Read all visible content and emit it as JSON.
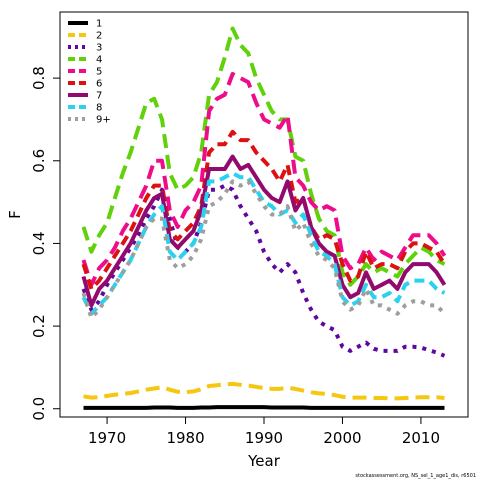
{
  "chart_data": {
    "type": "line",
    "title": "",
    "xlabel": "Year",
    "ylabel": "F",
    "xlim": [
      1964,
      2016
    ],
    "ylim": [
      -0.02,
      0.96
    ],
    "xticks": [
      1970,
      1980,
      1990,
      2000,
      2010
    ],
    "yticks": [
      0.0,
      0.2,
      0.4,
      0.6,
      0.8
    ],
    "xtick_labels": [
      "1970",
      "1980",
      "1990",
      "2000",
      "2010"
    ],
    "ytick_labels": [
      "0.0",
      "0.2",
      "0.4",
      "0.6",
      "0.8"
    ],
    "grid": false,
    "legend_position": "top-left",
    "x": [
      1967,
      1968,
      1969,
      1970,
      1971,
      1972,
      1973,
      1974,
      1975,
      1976,
      1977,
      1978,
      1979,
      1980,
      1981,
      1982,
      1983,
      1984,
      1985,
      1986,
      1987,
      1988,
      1989,
      1990,
      1991,
      1992,
      1993,
      1994,
      1995,
      1996,
      1997,
      1998,
      1999,
      2000,
      2001,
      2002,
      2003,
      2004,
      2005,
      2006,
      2007,
      2008,
      2009,
      2010,
      2011,
      2012,
      2013
    ],
    "series": [
      {
        "name": "1",
        "color": "#000000",
        "dash": "solid",
        "values": [
          0.002,
          0.002,
          0.002,
          0.002,
          0.002,
          0.002,
          0.002,
          0.002,
          0.002,
          0.003,
          0.003,
          0.003,
          0.002,
          0.002,
          0.002,
          0.003,
          0.003,
          0.004,
          0.004,
          0.004,
          0.004,
          0.004,
          0.004,
          0.004,
          0.003,
          0.003,
          0.003,
          0.003,
          0.003,
          0.002,
          0.002,
          0.002,
          0.002,
          0.002,
          0.002,
          0.002,
          0.002,
          0.002,
          0.002,
          0.002,
          0.002,
          0.002,
          0.002,
          0.002,
          0.002,
          0.002,
          0.002
        ]
      },
      {
        "name": "2",
        "color": "#f5c710",
        "dash": "long",
        "values": [
          0.03,
          0.027,
          0.028,
          0.031,
          0.034,
          0.036,
          0.038,
          0.042,
          0.046,
          0.049,
          0.052,
          0.046,
          0.041,
          0.04,
          0.042,
          0.047,
          0.055,
          0.057,
          0.059,
          0.06,
          0.058,
          0.056,
          0.053,
          0.05,
          0.048,
          0.048,
          0.051,
          0.048,
          0.044,
          0.04,
          0.037,
          0.036,
          0.033,
          0.029,
          0.027,
          0.027,
          0.027,
          0.026,
          0.026,
          0.025,
          0.025,
          0.026,
          0.027,
          0.028,
          0.028,
          0.028,
          0.026
        ]
      },
      {
        "name": "3",
        "color": "#61069f",
        "dash": "dot",
        "values": [
          0.29,
          0.24,
          0.26,
          0.3,
          0.33,
          0.36,
          0.39,
          0.42,
          0.46,
          0.49,
          0.53,
          0.46,
          0.39,
          0.38,
          0.4,
          0.45,
          0.53,
          0.53,
          0.54,
          0.53,
          0.49,
          0.46,
          0.43,
          0.38,
          0.35,
          0.33,
          0.35,
          0.33,
          0.28,
          0.24,
          0.21,
          0.2,
          0.19,
          0.15,
          0.14,
          0.15,
          0.16,
          0.145,
          0.14,
          0.14,
          0.14,
          0.15,
          0.15,
          0.148,
          0.142,
          0.136,
          0.128
        ]
      },
      {
        "name": "4",
        "color": "#61d10b",
        "dash": "long",
        "values": [
          0.44,
          0.38,
          0.42,
          0.45,
          0.51,
          0.57,
          0.62,
          0.68,
          0.74,
          0.75,
          0.7,
          0.57,
          0.53,
          0.54,
          0.56,
          0.62,
          0.76,
          0.79,
          0.85,
          0.92,
          0.88,
          0.86,
          0.8,
          0.76,
          0.72,
          0.7,
          0.7,
          0.61,
          0.6,
          0.52,
          0.46,
          0.43,
          0.42,
          0.33,
          0.3,
          0.32,
          0.35,
          0.33,
          0.34,
          0.33,
          0.32,
          0.35,
          0.37,
          0.39,
          0.38,
          0.36,
          0.35
        ]
      },
      {
        "name": "5",
        "color": "#ee0c8b",
        "dash": "long",
        "values": [
          0.36,
          0.3,
          0.34,
          0.36,
          0.39,
          0.43,
          0.46,
          0.5,
          0.54,
          0.6,
          0.6,
          0.48,
          0.44,
          0.48,
          0.5,
          0.54,
          0.72,
          0.75,
          0.76,
          0.81,
          0.8,
          0.79,
          0.74,
          0.7,
          0.69,
          0.68,
          0.71,
          0.56,
          0.54,
          0.5,
          0.48,
          0.49,
          0.48,
          0.37,
          0.34,
          0.35,
          0.39,
          0.36,
          0.38,
          0.37,
          0.36,
          0.39,
          0.42,
          0.42,
          0.42,
          0.4,
          0.37
        ]
      },
      {
        "name": "6",
        "color": "#dd1111",
        "dash": "medium",
        "values": [
          0.35,
          0.29,
          0.31,
          0.34,
          0.37,
          0.4,
          0.43,
          0.47,
          0.51,
          0.54,
          0.54,
          0.43,
          0.41,
          0.43,
          0.45,
          0.49,
          0.62,
          0.64,
          0.64,
          0.67,
          0.65,
          0.65,
          0.62,
          0.6,
          0.58,
          0.55,
          0.59,
          0.5,
          0.51,
          0.44,
          0.41,
          0.42,
          0.41,
          0.35,
          0.31,
          0.32,
          0.38,
          0.34,
          0.35,
          0.35,
          0.34,
          0.38,
          0.4,
          0.4,
          0.39,
          0.38,
          0.35
        ]
      },
      {
        "name": "7",
        "color": "#920a6e",
        "dash": "solid",
        "values": [
          0.32,
          0.25,
          0.29,
          0.31,
          0.34,
          0.37,
          0.4,
          0.44,
          0.48,
          0.51,
          0.52,
          0.41,
          0.39,
          0.41,
          0.43,
          0.48,
          0.58,
          0.58,
          0.58,
          0.61,
          0.58,
          0.59,
          0.56,
          0.53,
          0.51,
          0.5,
          0.55,
          0.48,
          0.51,
          0.44,
          0.4,
          0.38,
          0.37,
          0.3,
          0.27,
          0.28,
          0.33,
          0.29,
          0.3,
          0.31,
          0.29,
          0.33,
          0.35,
          0.35,
          0.35,
          0.33,
          0.3
        ]
      },
      {
        "name": "8",
        "color": "#2ad2f0",
        "dash": "medium",
        "values": [
          0.27,
          0.23,
          0.25,
          0.27,
          0.3,
          0.33,
          0.36,
          0.4,
          0.44,
          0.47,
          0.49,
          0.38,
          0.36,
          0.38,
          0.4,
          0.44,
          0.55,
          0.55,
          0.56,
          0.57,
          0.56,
          0.56,
          0.53,
          0.5,
          0.49,
          0.47,
          0.48,
          0.45,
          0.47,
          0.42,
          0.38,
          0.37,
          0.35,
          0.27,
          0.25,
          0.26,
          0.3,
          0.27,
          0.27,
          0.28,
          0.26,
          0.3,
          0.31,
          0.31,
          0.31,
          0.29,
          0.28
        ]
      },
      {
        "name": "9+",
        "color": "#9e9e9e",
        "dash": "dot",
        "values": [
          0.28,
          0.22,
          0.24,
          0.27,
          0.3,
          0.33,
          0.36,
          0.4,
          0.44,
          0.46,
          0.46,
          0.36,
          0.34,
          0.35,
          0.37,
          0.41,
          0.49,
          0.5,
          0.52,
          0.55,
          0.54,
          0.55,
          0.52,
          0.49,
          0.47,
          0.47,
          0.49,
          0.43,
          0.45,
          0.4,
          0.37,
          0.36,
          0.34,
          0.26,
          0.24,
          0.25,
          0.29,
          0.25,
          0.25,
          0.24,
          0.23,
          0.25,
          0.26,
          0.26,
          0.25,
          0.25,
          0.23
        ]
      }
    ]
  },
  "footer": {
    "note": "stockassessment.org, NS_sel_1_age1_dis, r6501"
  }
}
